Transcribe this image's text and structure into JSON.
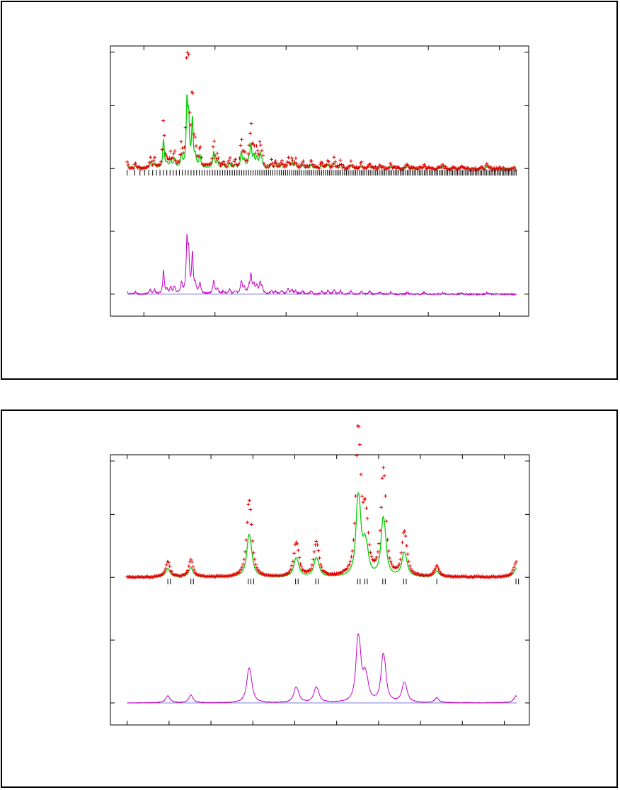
{
  "colors": {
    "observed": "#e00000",
    "calculated": "#00d000",
    "difference": "#c800c8",
    "reflection_ticks": "#000000",
    "frame": "#000000"
  },
  "chart_data": [
    {
      "type": "scatter",
      "title": "",
      "xlabel": "",
      "ylabel": "",
      "xlim": [
        0,
        100
      ],
      "ylim": [
        -4.2,
        4.4
      ],
      "x_major_ticks": [
        8,
        25,
        42,
        59,
        76,
        93
      ],
      "y_gridlines": [
        -3.5,
        -1.5,
        0.5,
        2.5,
        4.2
      ],
      "grid": false,
      "legend": "none",
      "noise": 0.05,
      "difference_offset": -3.5,
      "series": [
        {
          "role": "observed-minus-calculated peaks",
          "peaks": [
            {
              "x": 4.0,
              "h": 0.2,
              "w": 0.25
            },
            {
              "x": 6.0,
              "h": 0.15,
              "w": 0.25
            },
            {
              "x": 9.5,
              "h": 0.3,
              "w": 0.25
            },
            {
              "x": 10.5,
              "h": 0.3,
              "w": 0.25
            },
            {
              "x": 12.7,
              "h": 1.65,
              "w": 0.22
            },
            {
              "x": 13.5,
              "h": 0.25,
              "w": 0.25
            },
            {
              "x": 14.4,
              "h": 0.45,
              "w": 0.25
            },
            {
              "x": 15.3,
              "h": 0.5,
              "w": 0.25
            },
            {
              "x": 17.0,
              "h": 0.7,
              "w": 0.25
            },
            {
              "x": 18.3,
              "h": 3.6,
              "w": 0.22
            },
            {
              "x": 18.7,
              "h": 2.6,
              "w": 0.22
            },
            {
              "x": 19.6,
              "h": 2.75,
              "w": 0.22
            },
            {
              "x": 20.3,
              "h": 0.6,
              "w": 0.25
            },
            {
              "x": 21.4,
              "h": 0.7,
              "w": 0.25
            },
            {
              "x": 24.7,
              "h": 0.95,
              "w": 0.25
            },
            {
              "x": 25.6,
              "h": 0.4,
              "w": 0.25
            },
            {
              "x": 27.0,
              "h": 0.2,
              "w": 0.25
            },
            {
              "x": 28.5,
              "h": 0.3,
              "w": 0.25
            },
            {
              "x": 29.8,
              "h": 0.2,
              "w": 0.25
            },
            {
              "x": 31.3,
              "h": 0.9,
              "w": 0.25
            },
            {
              "x": 32.0,
              "h": 0.45,
              "w": 0.25
            },
            {
              "x": 33.1,
              "h": 0.4,
              "w": 0.25
            },
            {
              "x": 33.6,
              "h": 1.3,
              "w": 0.25
            },
            {
              "x": 34.3,
              "h": 0.6,
              "w": 0.25
            },
            {
              "x": 35.0,
              "h": 0.55,
              "w": 0.25
            },
            {
              "x": 35.8,
              "h": 0.8,
              "w": 0.25
            },
            {
              "x": 36.3,
              "h": 0.35,
              "w": 0.25
            },
            {
              "x": 38.5,
              "h": 0.25,
              "w": 0.25
            },
            {
              "x": 39.5,
              "h": 0.2,
              "w": 0.25
            },
            {
              "x": 41.0,
              "h": 0.25,
              "w": 0.25
            },
            {
              "x": 42.5,
              "h": 0.35,
              "w": 0.25
            },
            {
              "x": 43.4,
              "h": 0.3,
              "w": 0.25
            },
            {
              "x": 44.3,
              "h": 0.25,
              "w": 0.25
            },
            {
              "x": 46.0,
              "h": 0.2,
              "w": 0.25
            },
            {
              "x": 48.0,
              "h": 0.25,
              "w": 0.25
            },
            {
              "x": 50.5,
              "h": 0.2,
              "w": 0.25
            },
            {
              "x": 52.0,
              "h": 0.25,
              "w": 0.25
            },
            {
              "x": 53.5,
              "h": 0.3,
              "w": 0.25
            },
            {
              "x": 55.0,
              "h": 0.25,
              "w": 0.25
            },
            {
              "x": 57.5,
              "h": 0.2,
              "w": 0.25
            },
            {
              "x": 60.0,
              "h": 0.2,
              "w": 0.25
            },
            {
              "x": 62.0,
              "h": 0.2,
              "w": 0.25
            },
            {
              "x": 64.5,
              "h": 0.15,
              "w": 0.25
            },
            {
              "x": 67.0,
              "h": 0.15,
              "w": 0.25
            },
            {
              "x": 71.0,
              "h": 0.15,
              "w": 0.25
            },
            {
              "x": 75.0,
              "h": 0.12,
              "w": 0.25
            },
            {
              "x": 79.5,
              "h": 0.12,
              "w": 0.25
            },
            {
              "x": 84.0,
              "h": 0.1,
              "w": 0.25
            },
            {
              "x": 90.0,
              "h": 0.1,
              "w": 0.25
            }
          ]
        }
      ],
      "reflection_ticks": {
        "start": 4,
        "end": 97,
        "count": 190,
        "y": 0.5
      }
    },
    {
      "type": "scatter",
      "title": "",
      "xlabel": "",
      "ylabel": "",
      "xlim": [
        0,
        100
      ],
      "ylim": [
        -4.2,
        4.4
      ],
      "x_major_ticks": [
        4,
        14,
        24,
        34,
        44,
        54,
        64,
        74,
        84,
        94,
        104
      ],
      "y_gridlines": [
        -3.5,
        -1.5,
        0.5,
        2.5,
        4.2
      ],
      "grid": false,
      "legend": "none",
      "noise": 0.02,
      "difference_offset": -3.5,
      "series": [
        {
          "role": "observed-minus-calculated peaks",
          "peaks": [
            {
              "x": 13.7,
              "h": 0.5,
              "w": 0.6
            },
            {
              "x": 19.2,
              "h": 0.55,
              "w": 0.6
            },
            {
              "x": 33.0,
              "h": 1.9,
              "w": 0.6
            },
            {
              "x": 33.5,
              "h": 0.9,
              "w": 0.6
            },
            {
              "x": 44.2,
              "h": 0.8,
              "w": 0.6
            },
            {
              "x": 44.7,
              "h": 0.45,
              "w": 0.6
            },
            {
              "x": 49.0,
              "h": 0.8,
              "w": 0.6
            },
            {
              "x": 49.5,
              "h": 0.45,
              "w": 0.6
            },
            {
              "x": 59.0,
              "h": 3.3,
              "w": 0.55
            },
            {
              "x": 59.5,
              "h": 2.2,
              "w": 0.55
            },
            {
              "x": 60.7,
              "h": 1.4,
              "w": 0.55
            },
            {
              "x": 61.3,
              "h": 0.8,
              "w": 0.55
            },
            {
              "x": 65.0,
              "h": 2.5,
              "w": 0.55
            },
            {
              "x": 65.5,
              "h": 1.5,
              "w": 0.55
            },
            {
              "x": 70.0,
              "h": 1.0,
              "w": 0.6
            },
            {
              "x": 70.5,
              "h": 0.6,
              "w": 0.6
            },
            {
              "x": 77.9,
              "h": 0.35,
              "w": 0.6
            },
            {
              "x": 96.8,
              "h": 0.45,
              "w": 0.6
            },
            {
              "x": 99.8,
              "h": 1.1,
              "w": 0.6
            }
          ]
        }
      ],
      "reflection_ticks": {
        "positions": [
          13.7,
          14.3,
          19.2,
          19.8,
          32.9,
          33.5,
          34.2,
          44.2,
          44.8,
          49.0,
          49.6,
          59.0,
          59.6,
          60.7,
          61.3,
          65.0,
          65.6,
          70.0,
          70.6,
          77.9,
          96.8,
          97.4
        ],
        "y": 0.5
      }
    }
  ]
}
